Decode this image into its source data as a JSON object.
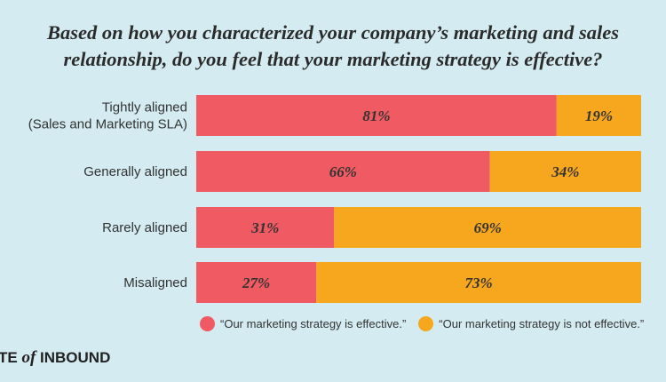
{
  "title_line1": "Based on how you characterized your company’s marketing and sales",
  "title_line2": "relationship, do you feel that your marketing strategy is effective?",
  "colors": {
    "effective": "#f05a62",
    "not_effective": "#f7a71e",
    "background": "#d4ecf1"
  },
  "legend": {
    "effective": "“Our marketing strategy is effective.”",
    "not_effective": "“Our marketing strategy is not effective.”"
  },
  "brand": {
    "prefix": "TE",
    "of": "of",
    "suffix": "INBOUND"
  },
  "chart_data": {
    "type": "bar",
    "orientation": "horizontal",
    "stacked": true,
    "categories": [
      [
        "Tightly aligned",
        "(Sales and Marketing SLA)"
      ],
      [
        "Generally aligned"
      ],
      [
        "Rarely aligned"
      ],
      [
        "Misaligned"
      ]
    ],
    "series": [
      {
        "name": "“Our marketing strategy is effective.”",
        "values": [
          81,
          66,
          31,
          27
        ],
        "labels": [
          "81%",
          "66%",
          "31%",
          "27%"
        ]
      },
      {
        "name": "“Our marketing strategy is not effective.”",
        "values": [
          19,
          34,
          69,
          73
        ],
        "labels": [
          "19%",
          "34%",
          "69%",
          "73%"
        ]
      }
    ],
    "xlim": [
      0,
      100
    ],
    "legend_position": "bottom"
  }
}
